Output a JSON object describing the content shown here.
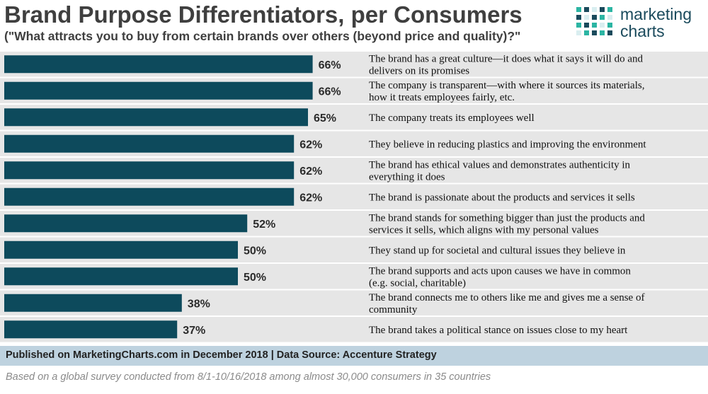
{
  "header": {
    "title": "Brand Purpose Differentiators, per Consumers",
    "subtitle": "(\"What attracts you to buy from certain brands over others (beyond price and quality)?\""
  },
  "logo": {
    "line1": "marketing",
    "line2": "charts"
  },
  "colors": {
    "bar": "#0d4a5c",
    "row_band": "#e6e6e6",
    "footer_band": "#bed2df",
    "logo_teal": "#2cb5a3",
    "logo_blue": "#1a4a5c"
  },
  "chart_data": {
    "type": "bar",
    "orientation": "horizontal",
    "title": "Brand Purpose Differentiators, per Consumers",
    "xlim": [
      0,
      100
    ],
    "value_suffix": "%",
    "categories": [
      [
        "The brand has a great culture—it does what it says it will do and",
        "delivers on its promises"
      ],
      [
        "The company is transparent—with where it sources its materials,",
        "how it treats employees fairly, etc."
      ],
      [
        "The company treats its employees well"
      ],
      [
        "They believe in reducing plastics and improving the environment"
      ],
      [
        "The brand has ethical values and demonstrates authenticity in",
        "everything it does"
      ],
      [
        "The brand is passionate about the products and services it sells"
      ],
      [
        "The brand stands for something bigger than just the products and",
        "services it sells, which aligns with my personal values"
      ],
      [
        "They stand up for societal and cultural issues they believe in"
      ],
      [
        "The brand supports and acts upon causes we have in common",
        "(e.g. social, charitable)"
      ],
      [
        "The brand connects me to others like me and gives me a sense of",
        "community"
      ],
      [
        "The brand takes a political stance on issues close to my heart"
      ]
    ],
    "values": [
      66,
      66,
      65,
      62,
      62,
      62,
      52,
      50,
      50,
      38,
      37
    ]
  },
  "footer": {
    "source": "Published on MarketingCharts.com in December 2018 | Data Source: Accenture Strategy",
    "note": "Based on a global survey conducted from 8/1-10/16/2018 among almost 30,000 consumers in 35 countries"
  }
}
